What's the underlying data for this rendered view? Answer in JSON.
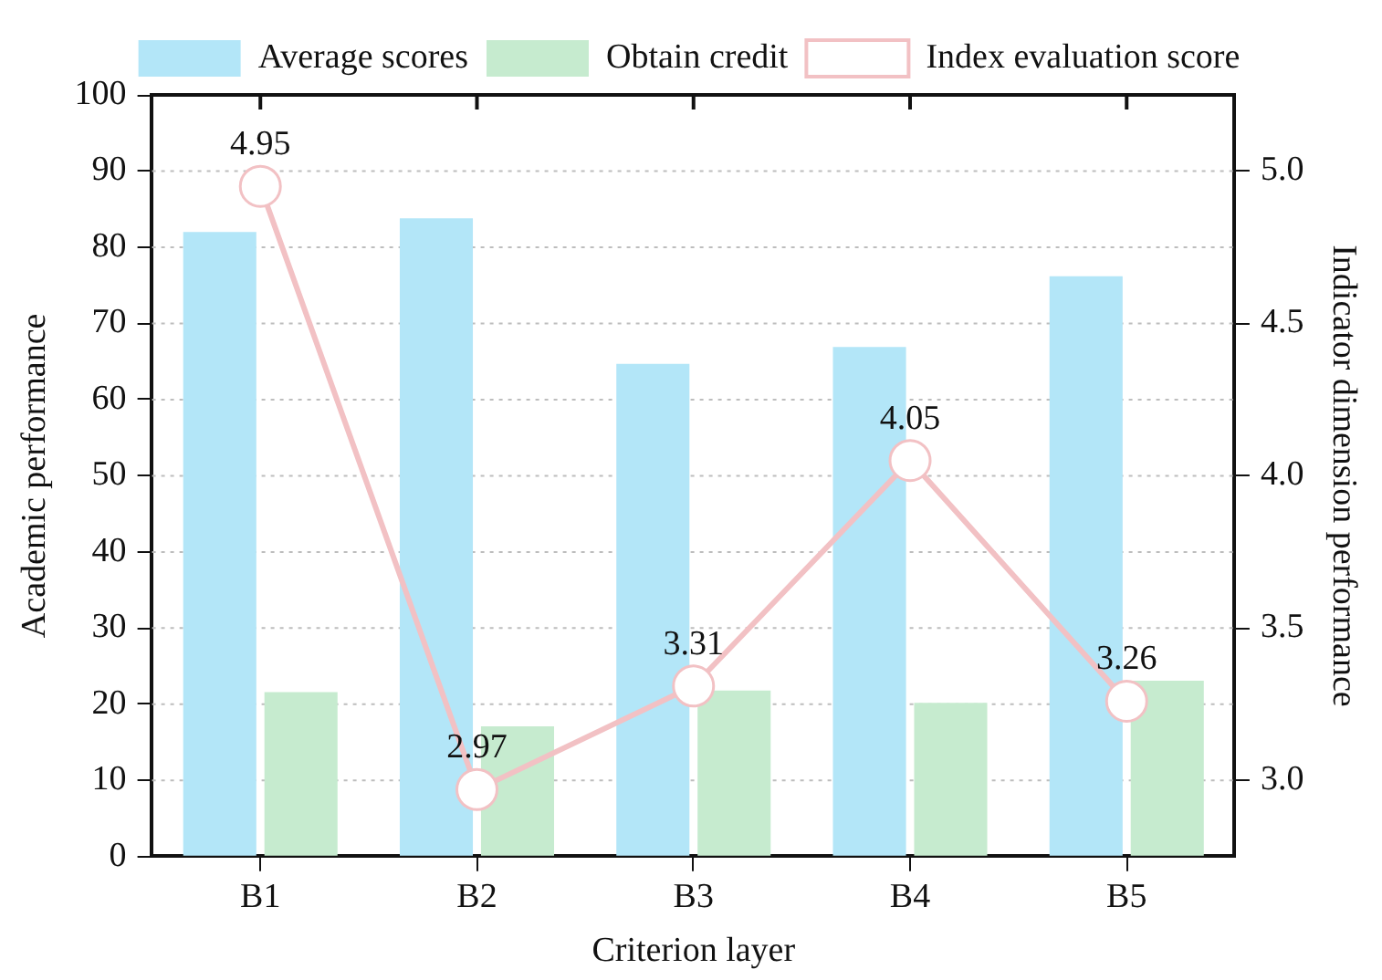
{
  "chart_data": {
    "type": "bar",
    "xlabel": "Criterion layer",
    "ylabel": "Academic performance",
    "y2label": "Indicator dimension performance",
    "categories": [
      "B1",
      "B2",
      "B3",
      "B4",
      "B5"
    ],
    "series": [
      {
        "name": "Average scores",
        "color": "#b3e6f8",
        "values": [
          82.0,
          83.8,
          64.7,
          66.9,
          76.2
        ]
      },
      {
        "name": "Obtain credit",
        "color": "#c6ebcf",
        "values": [
          21.6,
          17.1,
          21.8,
          20.2,
          23.1
        ]
      },
      {
        "name": "Index evaluation score",
        "type": "line",
        "axis": "y2",
        "color": "#f2c1c4",
        "marker": "circle",
        "values": [
          4.95,
          2.97,
          3.31,
          4.05,
          3.26
        ],
        "value_labels": [
          "4.95",
          "2.97",
          "3.31",
          "4.05",
          "3.26"
        ]
      }
    ],
    "ylim": [
      0,
      100
    ],
    "yticks": [
      0,
      10,
      20,
      30,
      40,
      50,
      60,
      70,
      80,
      90,
      100
    ],
    "y2lim": [
      2.75,
      5.25
    ],
    "y2ticks": [
      {
        "value": 3,
        "label": "3.0"
      },
      {
        "value": 3.5,
        "label": "3.5"
      },
      {
        "value": 4,
        "label": "4.0"
      },
      {
        "value": 4.5,
        "label": "4.5"
      },
      {
        "value": 5,
        "label": "5.0"
      }
    ],
    "grid": "y",
    "legend": "top"
  }
}
